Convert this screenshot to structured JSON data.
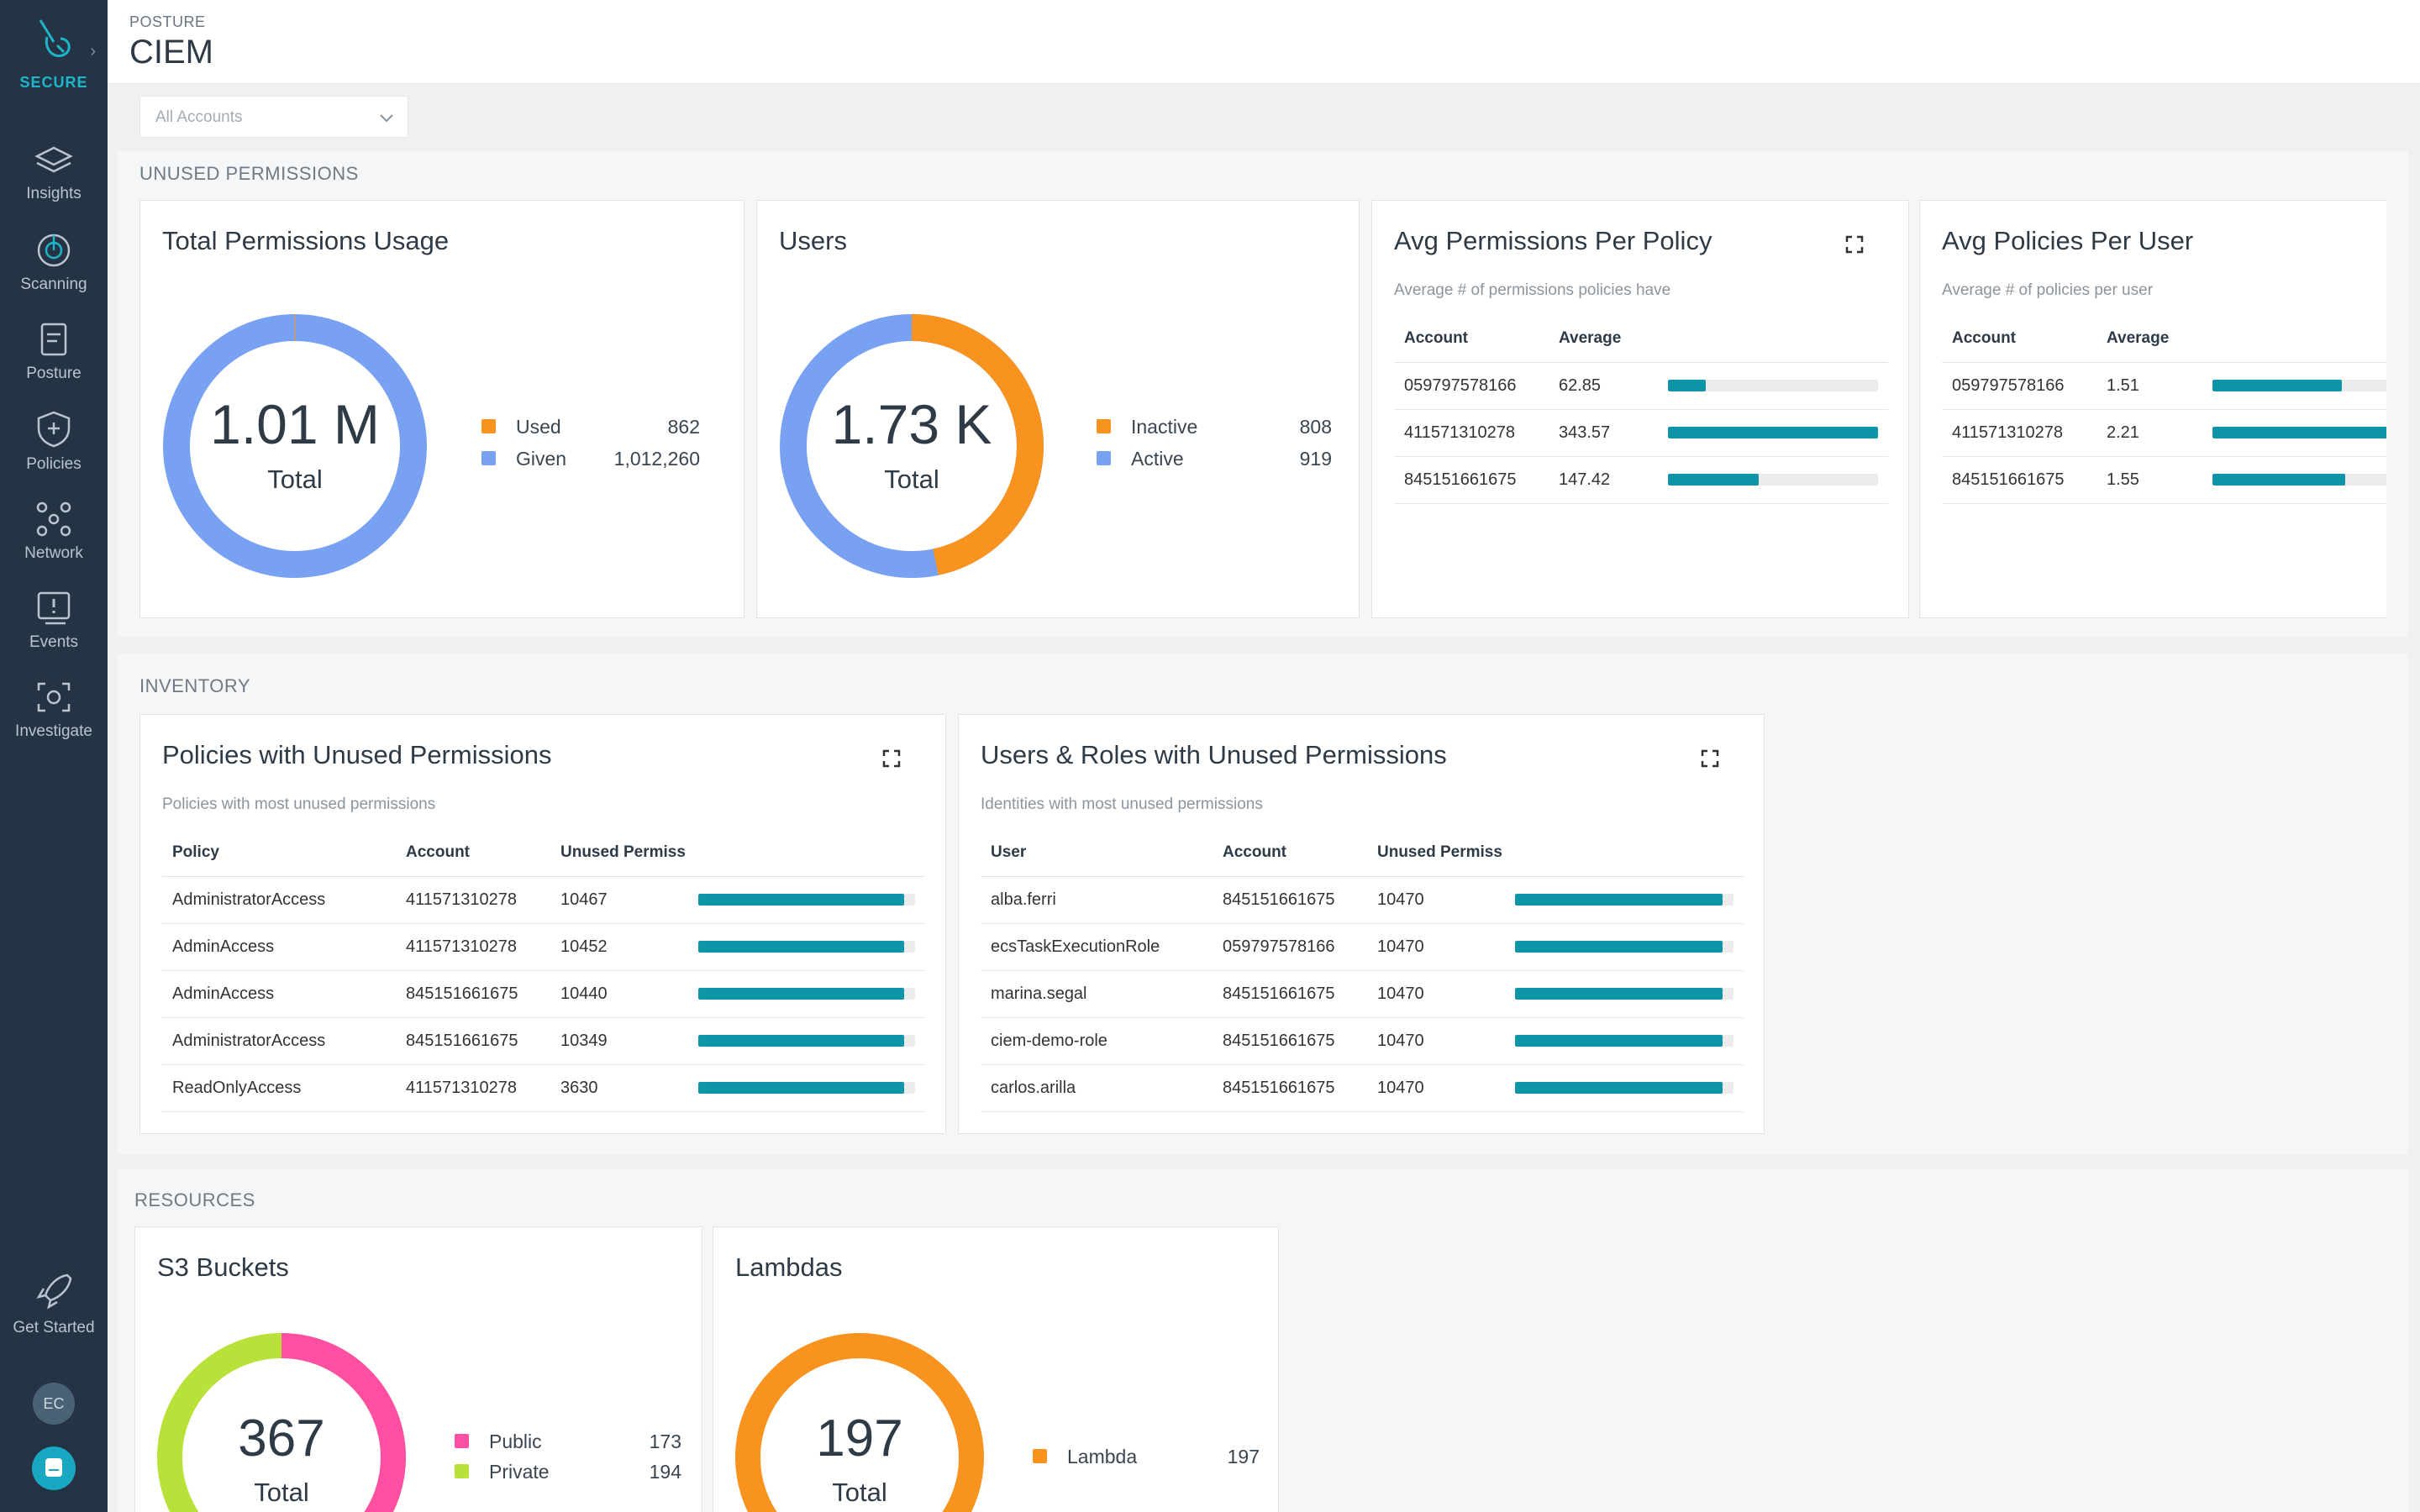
{
  "sidebar": {
    "brand": "SECURE",
    "items": [
      {
        "label": "Insights",
        "icon": "layers-icon"
      },
      {
        "label": "Scanning",
        "icon": "radar-icon"
      },
      {
        "label": "Posture",
        "icon": "clipboard-icon"
      },
      {
        "label": "Policies",
        "icon": "shield-plus-icon"
      },
      {
        "label": "Network",
        "icon": "network-icon"
      },
      {
        "label": "Events",
        "icon": "events-icon"
      },
      {
        "label": "Investigate",
        "icon": "investigate-icon"
      }
    ],
    "get_started": "Get Started",
    "avatar_initials": "EC"
  },
  "header": {
    "breadcrumb": "POSTURE",
    "title": "CIEM"
  },
  "account_filter": {
    "value": "All Accounts"
  },
  "sections": {
    "unused": "UNUSED PERMISSIONS",
    "inventory": "INVENTORY",
    "resources": "RESOURCES"
  },
  "total_permissions": {
    "title": "Total Permissions Usage",
    "center_value": "1.01 M",
    "center_label": "Total",
    "legend": [
      {
        "label": "Used",
        "value": "862",
        "color": "#f7931e"
      },
      {
        "label": "Given",
        "value": "1,012,260",
        "color": "#79a1f2"
      }
    ]
  },
  "users": {
    "title": "Users",
    "center_value": "1.73 K",
    "center_label": "Total",
    "legend": [
      {
        "label": "Inactive",
        "value": "808",
        "color": "#f7931e"
      },
      {
        "label": "Active",
        "value": "919",
        "color": "#79a1f2"
      }
    ]
  },
  "avg_perm_policy": {
    "title": "Avg Permissions Per Policy",
    "subtitle": "Average # of permissions policies have",
    "columns": [
      "Account",
      "Average"
    ],
    "rows": [
      {
        "account": "059797578166",
        "average": "62.85",
        "bar": 0.18
      },
      {
        "account": "411571310278",
        "average": "343.57",
        "bar": 1.0
      },
      {
        "account": "845151661675",
        "average": "147.42",
        "bar": 0.43
      }
    ]
  },
  "avg_policies_user": {
    "title": "Avg Policies Per User",
    "subtitle": "Average # of policies per user",
    "columns": [
      "Account",
      "Average"
    ],
    "rows": [
      {
        "account": "059797578166",
        "average": "1.51",
        "bar": 0.68
      },
      {
        "account": "411571310278",
        "average": "2.21",
        "bar": 1.0
      },
      {
        "account": "845151661675",
        "average": "1.55",
        "bar": 0.7
      }
    ]
  },
  "policies_unused": {
    "title": "Policies with Unused Permissions",
    "subtitle": "Policies with most unused permissions",
    "columns": [
      "Policy",
      "Account",
      "Unused Permiss"
    ],
    "rows": [
      {
        "name": "AdministratorAccess",
        "account": "411571310278",
        "unused": "10467",
        "bar": 0.95
      },
      {
        "name": "AdminAccess",
        "account": "411571310278",
        "unused": "10452",
        "bar": 0.95
      },
      {
        "name": "AdminAccess",
        "account": "845151661675",
        "unused": "10440",
        "bar": 0.95
      },
      {
        "name": "AdministratorAccess",
        "account": "845151661675",
        "unused": "10349",
        "bar": 0.95
      },
      {
        "name": "ReadOnlyAccess",
        "account": "411571310278",
        "unused": "3630",
        "bar": 0.95
      }
    ]
  },
  "users_roles_unused": {
    "title": "Users & Roles with Unused Permissions",
    "subtitle": "Identities with most unused permissions",
    "columns": [
      "User",
      "Account",
      "Unused Permiss"
    ],
    "rows": [
      {
        "name": "alba.ferri",
        "account": "845151661675",
        "unused": "10470",
        "bar": 0.95
      },
      {
        "name": "ecsTaskExecutionRole",
        "account": "059797578166",
        "unused": "10470",
        "bar": 0.95
      },
      {
        "name": "marina.segal",
        "account": "845151661675",
        "unused": "10470",
        "bar": 0.95
      },
      {
        "name": "ciem-demo-role",
        "account": "845151661675",
        "unused": "10470",
        "bar": 0.95
      },
      {
        "name": "carlos.arilla",
        "account": "845151661675",
        "unused": "10470",
        "bar": 0.95
      }
    ]
  },
  "s3": {
    "title": "S3 Buckets",
    "center_value": "367",
    "center_label": "Total",
    "legend": [
      {
        "label": "Public",
        "value": "173",
        "color": "#ff4fa3"
      },
      {
        "label": "Private",
        "value": "194",
        "color": "#b8e23a"
      }
    ]
  },
  "lambdas": {
    "title": "Lambdas",
    "center_value": "197",
    "center_label": "Total",
    "legend": [
      {
        "label": "Lambda",
        "value": "197",
        "color": "#f7931e"
      }
    ]
  }
}
